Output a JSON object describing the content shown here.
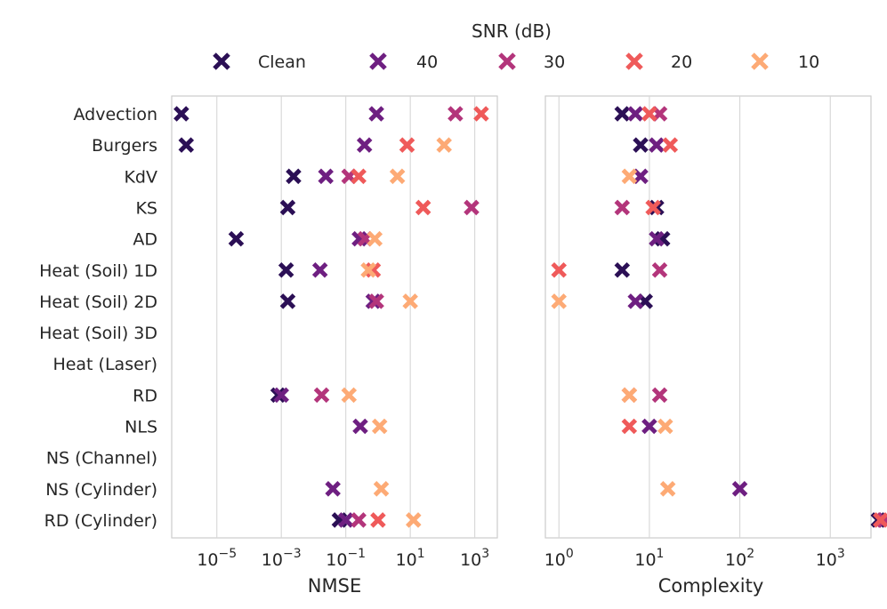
{
  "chart_data": {
    "type": "scatter",
    "legend": {
      "title": "SNR (dB)",
      "placement": "top-center",
      "entries": [
        {
          "label": "Clean",
          "color": "#2b0f55"
        },
        {
          "label": "40",
          "color": "#6e1f81"
        },
        {
          "label": "30",
          "color": "#b3357b"
        },
        {
          "label": "20",
          "color": "#ef5a5a"
        },
        {
          "label": "10",
          "color": "#fdaa75"
        }
      ]
    },
    "categories": [
      "Advection",
      "Burgers",
      "KdV",
      "KS",
      "AD",
      "Heat (Soil) 1D",
      "Heat (Soil) 2D",
      "Heat (Soil) 3D",
      "Heat (Laser)",
      "RD",
      "NLS",
      "NS (Channel)",
      "NS (Cylinder)",
      "RD (Cylinder)"
    ],
    "panels": [
      {
        "name": "nmse",
        "xlabel": "NMSE",
        "xscale": "log",
        "xlim_exp": [
          -6.4,
          3.7
        ],
        "ticks": [
          {
            "base": "10",
            "exp": "−5",
            "value": -5
          },
          {
            "base": "10",
            "exp": "−3",
            "value": -3
          },
          {
            "base": "10",
            "exp": "−1",
            "value": -1
          },
          {
            "base": "10",
            "exp": "1",
            "value": 1
          },
          {
            "base": "10",
            "exp": "3",
            "value": 3
          }
        ],
        "series": [
          {
            "name": "Clean",
            "log10_values": [
              -6.1,
              -5.95,
              -2.62,
              -2.8,
              -4.4,
              -2.85,
              -2.8,
              null,
              null,
              -3.1,
              null,
              null,
              null,
              -1.2
            ]
          },
          {
            "name": "40",
            "log10_values": [
              -0.05,
              -0.42,
              -1.62,
              null,
              -0.58,
              -1.8,
              -0.15,
              null,
              null,
              -3.0,
              -0.55,
              null,
              -1.4,
              -1.0
            ]
          },
          {
            "name": "30",
            "log10_values": [
              2.4,
              null,
              -0.9,
              2.9,
              -0.4,
              null,
              -0.05,
              null,
              null,
              -1.75,
              null,
              null,
              null,
              -0.6
            ]
          },
          {
            "name": "20",
            "log10_values": [
              3.2,
              0.9,
              -0.6,
              1.4,
              null,
              -0.15,
              null,
              null,
              null,
              null,
              null,
              null,
              null,
              0.0
            ]
          },
          {
            "name": "10",
            "log10_values": [
              null,
              2.05,
              0.6,
              null,
              -0.1,
              -0.3,
              1.0,
              null,
              null,
              -0.9,
              0.05,
              null,
              0.1,
              1.1
            ]
          }
        ]
      },
      {
        "name": "complexity",
        "xlabel": "Complexity",
        "xscale": "log",
        "xlim_exp": [
          -0.15,
          3.45
        ],
        "ticks": [
          {
            "base": "10",
            "exp": "0",
            "value": 0
          },
          {
            "base": "10",
            "exp": "1",
            "value": 1
          },
          {
            "base": "10",
            "exp": "2",
            "value": 2
          },
          {
            "base": "10",
            "exp": "3",
            "value": 3
          }
        ],
        "series": [
          {
            "name": "Clean",
            "values": [
              5,
              8,
              null,
              12,
              14,
              5,
              9,
              null,
              null,
              null,
              null,
              null,
              null,
              3400
            ]
          },
          {
            "name": "40",
            "values": [
              7,
              12,
              8,
              null,
              12,
              null,
              7,
              null,
              null,
              null,
              10,
              null,
              100,
              4000
            ]
          },
          {
            "name": "30",
            "values": [
              13,
              null,
              null,
              5,
              null,
              13,
              null,
              null,
              null,
              13,
              null,
              null,
              null,
              3900
            ]
          },
          {
            "name": "20",
            "values": [
              10,
              17,
              null,
              11,
              null,
              1,
              null,
              null,
              null,
              6,
              6,
              null,
              null,
              3600
            ]
          },
          {
            "name": "10",
            "values": [
              null,
              null,
              6,
              null,
              null,
              null,
              1,
              null,
              null,
              6,
              15,
              null,
              16,
              null
            ]
          }
        ]
      }
    ]
  }
}
